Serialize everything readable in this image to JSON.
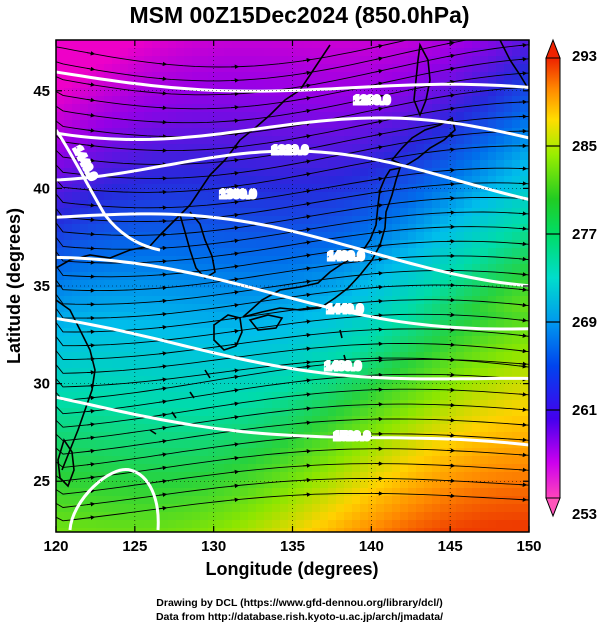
{
  "title": "MSM 00Z15Dec2024 (850.0hPa)",
  "footer": {
    "line1": "Drawing by DCL (https://www.gfd-dennou.org/library/dcl/)",
    "line2": "Data from http://database.rish.kyoto-u.ac.jp/arch/jmadata/"
  },
  "chart_data": {
    "type": "heatmap",
    "title": "MSM 00Z15Dec2024 (850.0hPa)",
    "xlabel": "Longitude (degrees)",
    "ylabel": "Latitude  (degrees)",
    "xlim": [
      120,
      150
    ],
    "ylim": [
      22.4,
      47.6
    ],
    "x_ticks": [
      "120",
      "125",
      "130",
      "135",
      "140",
      "145",
      "150"
    ],
    "y_ticks": [
      "25",
      "30",
      "35",
      "40",
      "45"
    ],
    "colorbar": {
      "range": [
        253,
        293
      ],
      "tick_labels": [
        "293",
        "285",
        "277",
        "269",
        "261",
        "253"
      ],
      "colors": [
        "#ee00cc",
        "#9900ee",
        "#2222dd",
        "#0077ee",
        "#00ccee",
        "#00e0a0",
        "#33dd22",
        "#88ee00",
        "#ffdd00",
        "#ff8800",
        "#ff4400",
        "#ee2200"
      ]
    },
    "contours": [
      {
        "label": "1280.0"
      },
      {
        "label": "1320.0"
      },
      {
        "label": "1360.0"
      },
      {
        "label": "1400.0"
      },
      {
        "label": "1440.0"
      },
      {
        "label": "1480.0"
      },
      {
        "label": "1520.0"
      }
    ],
    "grid": true
  }
}
